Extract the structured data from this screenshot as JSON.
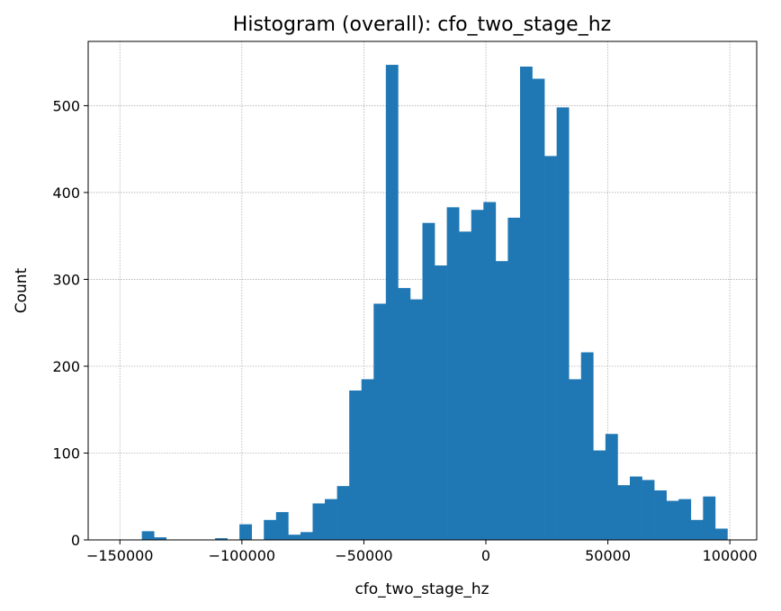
{
  "chart_data": {
    "type": "bar",
    "title": "Histogram (overall): cfo_two_stage_hz",
    "xlabel": "cfo_two_stage_hz",
    "ylabel": "Count",
    "xlim": [
      -163000,
      111000
    ],
    "ylim": [
      0,
      574
    ],
    "grid": true,
    "bar_color": "#1f77b4",
    "x_ticks": [
      {
        "value": -150000,
        "label": "−150000"
      },
      {
        "value": -100000,
        "label": "−100000"
      },
      {
        "value": -50000,
        "label": "−50000"
      },
      {
        "value": 0,
        "label": "0"
      },
      {
        "value": 50000,
        "label": "50000"
      },
      {
        "value": 100000,
        "label": "100000"
      }
    ],
    "y_ticks": [
      {
        "value": 0,
        "label": "0"
      },
      {
        "value": 100,
        "label": "100"
      },
      {
        "value": 200,
        "label": "200"
      },
      {
        "value": 300,
        "label": "300"
      },
      {
        "value": 400,
        "label": "400"
      },
      {
        "value": 500,
        "label": "500"
      }
    ],
    "bins": {
      "edges": [
        -146000,
        -141000,
        -136000,
        -131000,
        -126000,
        -121000,
        -116000,
        -111000,
        -106000,
        -101000,
        -96000,
        -91000,
        -86000,
        -81000,
        -76000,
        -71000,
        -66000,
        -61000,
        -56000,
        -51000,
        -46000,
        -41000,
        -36000,
        -31000,
        -26000,
        -21000,
        -16000,
        -11000,
        -6000,
        -1000,
        4000,
        9000,
        14000,
        19000,
        24000,
        29000,
        34000,
        39000,
        44000,
        49000,
        54000,
        59000,
        64000,
        69000,
        74000,
        79000,
        84000,
        89000,
        94000,
        99000
      ],
      "counts": [
        0,
        10,
        3,
        0,
        0,
        0,
        0,
        2,
        0,
        18,
        0,
        23,
        32,
        6,
        9,
        42,
        47,
        62,
        172,
        185,
        272,
        547,
        290,
        277,
        365,
        316,
        383,
        355,
        380,
        389,
        321,
        371,
        545,
        531,
        442,
        498,
        185,
        216,
        103,
        122,
        63,
        73,
        69,
        57,
        45,
        47,
        23,
        50,
        13
      ]
    }
  }
}
